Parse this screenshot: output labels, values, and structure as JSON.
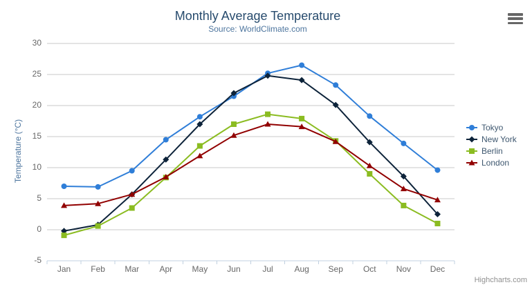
{
  "chart": {
    "title": "Monthly Average Temperature",
    "subtitle": "Source: WorldClimate.com",
    "y_axis_title": "Temperature (°C)",
    "credits": "Highcharts.com"
  },
  "theme": {
    "background": "#ffffff",
    "title_color": "#274b6d",
    "subtitle_color": "#4d759e",
    "axis_label_color": "#666666",
    "axis_title_color": "#4d759e",
    "legend_text_color": "#3e576f",
    "grid_color": "#c9c9c9",
    "axis_line_color": "#c0d0e0",
    "credits_color": "#909090",
    "menu_icon_color": "#666666"
  },
  "chart_data": {
    "type": "line",
    "title": "Monthly Average Temperature",
    "subtitle": "Source: WorldClimate.com",
    "categories": [
      "Jan",
      "Feb",
      "Mar",
      "Apr",
      "May",
      "Jun",
      "Jul",
      "Aug",
      "Sep",
      "Oct",
      "Nov",
      "Dec"
    ],
    "series": [
      {
        "name": "Tokyo",
        "color": "#2f7ed8",
        "marker": "circle",
        "values": [
          7.0,
          6.9,
          9.5,
          14.5,
          18.2,
          21.5,
          25.2,
          26.5,
          23.3,
          18.3,
          13.9,
          9.6
        ]
      },
      {
        "name": "New York",
        "color": "#0d233a",
        "marker": "diamond",
        "values": [
          -0.2,
          0.8,
          5.7,
          11.3,
          17.0,
          22.0,
          24.8,
          24.1,
          20.1,
          14.1,
          8.6,
          2.5
        ]
      },
      {
        "name": "Berlin",
        "color": "#8bbc21",
        "marker": "square",
        "values": [
          -0.9,
          0.6,
          3.5,
          8.4,
          13.5,
          17.0,
          18.6,
          17.9,
          14.3,
          9.0,
          3.9,
          1.0
        ]
      },
      {
        "name": "London",
        "color": "#910000",
        "marker": "triangle",
        "values": [
          3.9,
          4.2,
          5.7,
          8.5,
          11.9,
          15.2,
          17.0,
          16.6,
          14.2,
          10.3,
          6.6,
          4.8
        ]
      }
    ],
    "xlabel": "",
    "ylabel": "Temperature (°C)",
    "ylim": [
      -5,
      30
    ],
    "yticks": [
      -5,
      0,
      5,
      10,
      15,
      20,
      25,
      30
    ],
    "grid": true,
    "legend_position": "right"
  }
}
